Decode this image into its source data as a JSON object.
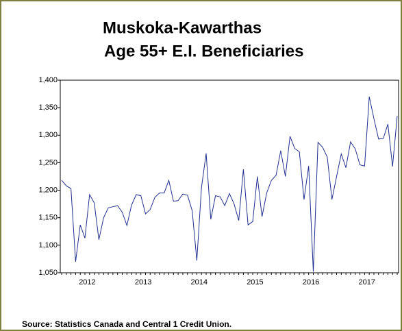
{
  "chart_data": {
    "type": "line",
    "title": [
      "Muskoka-Kawarthas",
      "Age 55+ E.I. Beneficiaries"
    ],
    "source": "Source: Statistics Canada and Central 1 Credit Union.",
    "categories": [
      null,
      null,
      null,
      null,
      null,
      null,
      "2012",
      null,
      null,
      null,
      null,
      null,
      null,
      null,
      null,
      null,
      null,
      null,
      "2013",
      null,
      null,
      null,
      null,
      null,
      null,
      null,
      null,
      null,
      null,
      null,
      "2014",
      null,
      null,
      null,
      null,
      null,
      null,
      null,
      null,
      null,
      null,
      null,
      "2015",
      null,
      null,
      null,
      null,
      null,
      null,
      null,
      null,
      null,
      null,
      null,
      "2016",
      null,
      null,
      null,
      null,
      null,
      null,
      null,
      null,
      null,
      null,
      null,
      "2017",
      null,
      null,
      null,
      null,
      null,
      null
    ],
    "series": [
      {
        "name": null,
        "color": "#1f2f8f",
        "values": [
          1218,
          1208,
          1203,
          1070,
          1137,
          1113,
          1192,
          1177,
          1110,
          1150,
          1168,
          1170,
          1172,
          1160,
          1136,
          1173,
          1192,
          1190,
          1157,
          1165,
          1187,
          1195,
          1195,
          1218,
          1180,
          1181,
          1193,
          1191,
          1163,
          1072,
          1205,
          1267,
          1147,
          1190,
          1188,
          1172,
          1194,
          1175,
          1145,
          1238,
          1137,
          1143,
          1225,
          1152,
          1195,
          1218,
          1227,
          1272,
          1225,
          1298,
          1276,
          1270,
          1183,
          1244,
          1052,
          1287,
          1278,
          1260,
          1183,
          1225,
          1266,
          1241,
          1288,
          1275,
          1246,
          1244,
          1370,
          1330,
          1293,
          1294,
          1320,
          1243,
          1335
        ]
      }
    ],
    "ylim": [
      1050,
      1400
    ],
    "yticks": [
      {
        "value": 1050,
        "label": "1,050"
      },
      {
        "value": 1100,
        "label": "1,100"
      },
      {
        "value": 1150,
        "label": "1,150"
      },
      {
        "value": 1200,
        "label": "1,200"
      },
      {
        "value": 1250,
        "label": "1,250"
      },
      {
        "value": 1300,
        "label": "1,300"
      },
      {
        "value": 1350,
        "label": "1,350"
      },
      {
        "value": 1400,
        "label": "1,400"
      }
    ],
    "grid": false
  }
}
